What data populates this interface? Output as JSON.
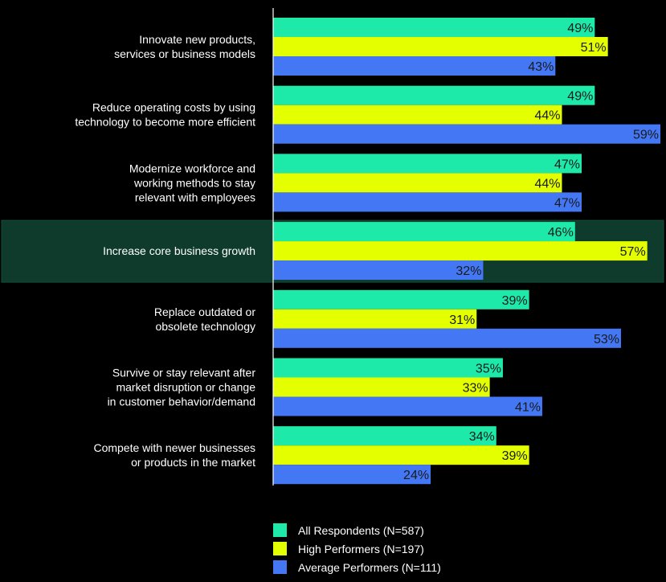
{
  "chart_data": {
    "type": "bar",
    "orientation": "horizontal",
    "categories": [
      [
        "Innovate new products,",
        "services or business models"
      ],
      [
        "Reduce operating costs by using",
        "technology to become more efficient"
      ],
      [
        "Modernize workforce and",
        "working methods to stay",
        "relevant with employees"
      ],
      [
        "Increase core business growth"
      ],
      [
        "Replace outdated or",
        "obsolete technology"
      ],
      [
        "Survive or stay relevant after",
        "market disruption or change",
        "in customer behavior/demand"
      ],
      [
        "Compete with newer businesses",
        "or products in the market"
      ]
    ],
    "series": [
      {
        "name": "All Respondents (N=587)",
        "color": "#1de9a9",
        "values": [
          49,
          49,
          47,
          46,
          39,
          35,
          34
        ]
      },
      {
        "name": "High Performers (N=197)",
        "color": "#e3ff00",
        "values": [
          51,
          44,
          44,
          57,
          31,
          33,
          39
        ]
      },
      {
        "name": "Average Performers (N=111)",
        "color": "#4477f4",
        "values": [
          43,
          59,
          47,
          32,
          53,
          41,
          24
        ]
      }
    ],
    "value_suffix": "%",
    "highlighted_category_index": 3,
    "highlight_color": "#0e3b2c",
    "xlim": [
      0,
      59
    ],
    "legend_position": "bottom"
  }
}
